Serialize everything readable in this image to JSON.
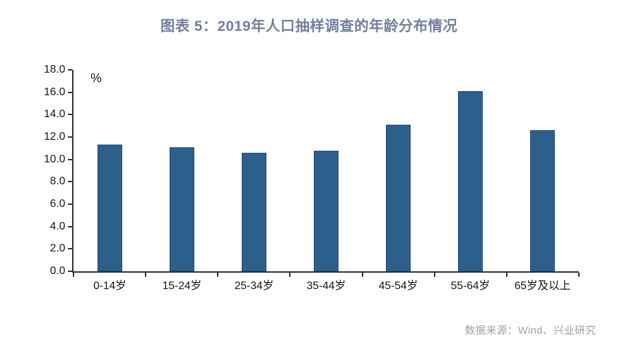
{
  "header": {
    "title": "图表 5：2019年人口抽样调查的年龄分布情况"
  },
  "chart_data": {
    "type": "bar",
    "title": "图表 5：2019年人口抽样调查的年龄分布情况",
    "unit_label": "%",
    "categories": [
      "0-14岁",
      "15-24岁",
      "25-34岁",
      "35-44岁",
      "45-54岁",
      "55-64岁",
      "65岁及以上"
    ],
    "values": [
      11.3,
      11.1,
      10.6,
      10.8,
      13.1,
      16.1,
      12.6
    ],
    "ylim": [
      0,
      18
    ],
    "ytick_step": 2,
    "ytick_labels": [
      "0.0",
      "2.0",
      "4.0",
      "6.0",
      "8.0",
      "10.0",
      "12.0",
      "14.0",
      "16.0",
      "18.0"
    ],
    "grid": false,
    "legend": "none",
    "bar_color": "#2d5f8c",
    "bar_edge_color": "#1d4e79",
    "axis_color": "#2f2f2f",
    "label_color": "#141414",
    "title_color": "#71809c"
  },
  "footer": {
    "source": "数据来源：Wind、兴业研究"
  }
}
